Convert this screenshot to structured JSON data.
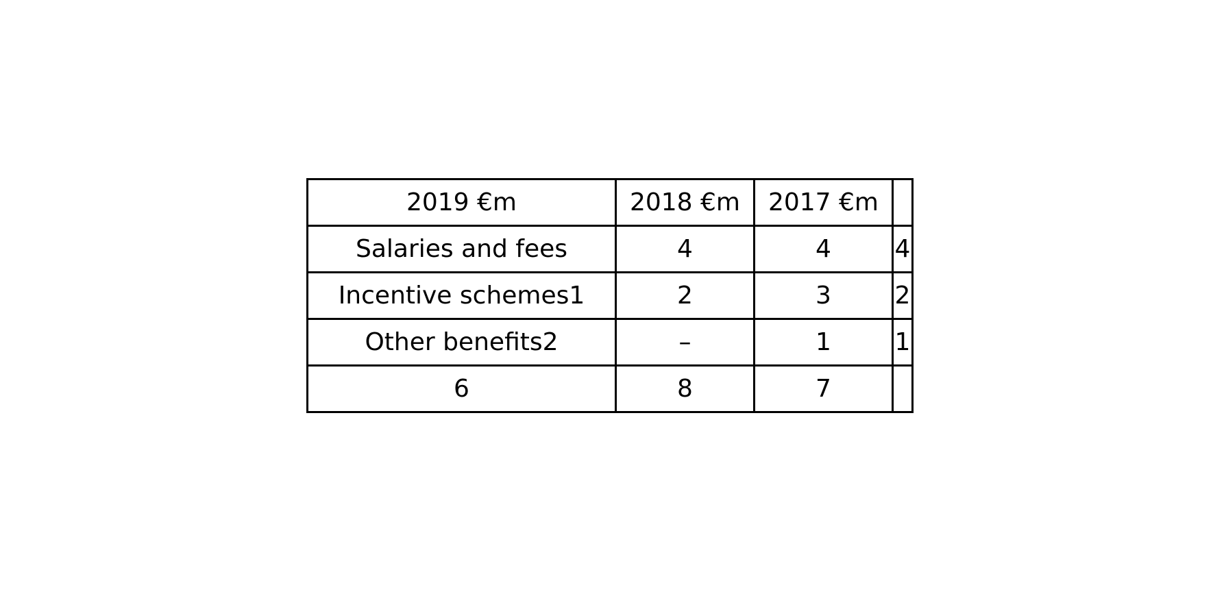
{
  "table": {
    "header": [
      "2019 €m",
      "2018 €m",
      "2017 €m",
      ""
    ],
    "rows": [
      [
        "Salaries and fees",
        "4",
        "4",
        "4"
      ],
      [
        "Incentive schemes1",
        "2",
        "3",
        "2"
      ],
      [
        "Other benefits2",
        "–",
        "1",
        "1"
      ],
      [
        "6",
        "8",
        "7",
        ""
      ]
    ]
  }
}
